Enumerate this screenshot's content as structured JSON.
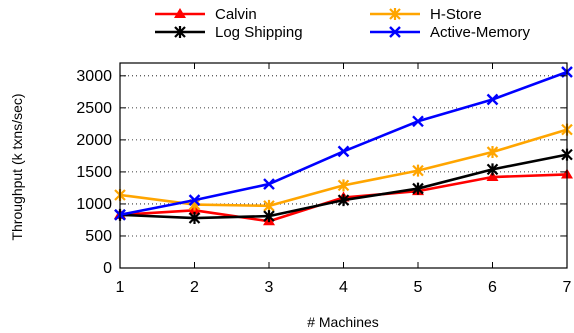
{
  "chart_data": {
    "type": "line",
    "xlabel": "# Machines",
    "ylabel": "Throughput (k txns/sec)",
    "x": [
      1,
      2,
      3,
      4,
      5,
      6,
      7
    ],
    "xlim": [
      1,
      7
    ],
    "ylim": [
      0,
      3200
    ],
    "xticks": [
      "1",
      "2",
      "3",
      "4",
      "5",
      "6",
      "7"
    ],
    "yticks": [
      0,
      500,
      1000,
      1500,
      2000,
      2500,
      3000
    ],
    "ytick_labels": [
      "0",
      "500",
      "1000",
      "1500",
      "2000",
      "2500",
      "3000"
    ],
    "grid": "horizontal dotted",
    "legend_position": "top, outside plot, two columns",
    "series": [
      {
        "name": "Calvin",
        "color": "#ff0000",
        "marker": "triangle",
        "values": [
          830,
          900,
          730,
          1100,
          1200,
          1420,
          1460
        ]
      },
      {
        "name": "H-Store",
        "color": "#ffa500",
        "marker": "star",
        "values": [
          1140,
          990,
          970,
          1290,
          1520,
          1810,
          2160
        ]
      },
      {
        "name": "Log Shipping",
        "color": "#000000",
        "marker": "star",
        "values": [
          830,
          780,
          810,
          1060,
          1240,
          1540,
          1770
        ]
      },
      {
        "name": "Active-Memory",
        "color": "#0000ff",
        "marker": "cross",
        "values": [
          830,
          1060,
          1310,
          1820,
          2290,
          2630,
          3060
        ]
      }
    ]
  }
}
